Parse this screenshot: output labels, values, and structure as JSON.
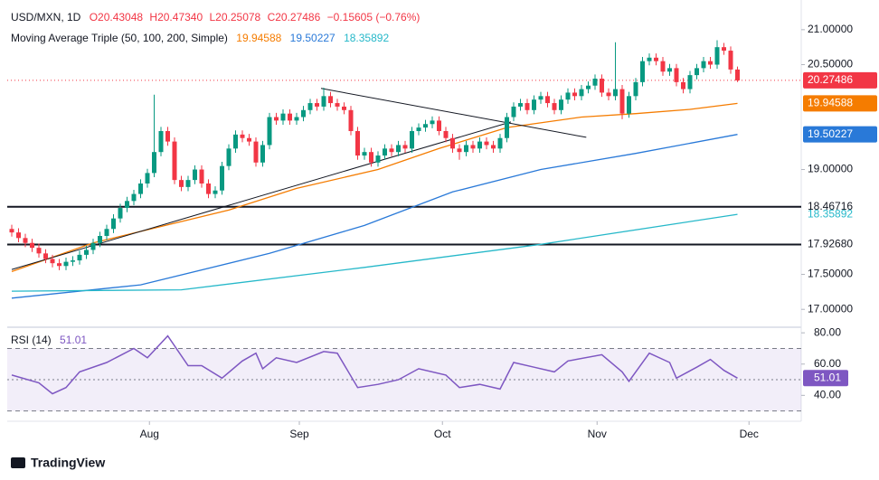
{
  "chart_data": {
    "type": "candlestick",
    "header": {
      "symbol": "USD/MXN, 1D",
      "open": "O20.43048",
      "high": "H20.47340",
      "low": "L20.25078",
      "close": "C20.27486",
      "change": "−0.15605 (−0.76%)"
    },
    "ma_title": "Moving Average Triple (50, 100, 200, Simple)",
    "footer": "TradingView",
    "xticks": [
      {
        "value": 20.3,
        "label": "Aug"
      },
      {
        "value": 42.4,
        "label": "Sep"
      },
      {
        "value": 63.5,
        "label": "Oct"
      },
      {
        "value": 86.3,
        "label": "Nov"
      },
      {
        "value": 108.7,
        "label": "Dec"
      }
    ],
    "ylim": [
      16.77,
      21.36
    ],
    "yticks": [
      {
        "value": 21,
        "label": "21.00000"
      },
      {
        "value": 20.5,
        "label": "20.50000"
      },
      {
        "value": 19,
        "label": "19.00000"
      },
      {
        "value": 17.5,
        "label": "17.50000"
      },
      {
        "value": 17,
        "label": "17.00000"
      }
    ],
    "up_color": "#089981",
    "down_color": "#f23645",
    "open": [
      18.15,
      18.1,
      18.02,
      17.95,
      17.88,
      17.8,
      17.72,
      17.66,
      17.62,
      17.68,
      17.7,
      17.78,
      17.85,
      17.95,
      18.05,
      18.15,
      18.3,
      18.45,
      18.55,
      18.65,
      18.8,
      18.95,
      19.25,
      19.55,
      19.4,
      18.85,
      18.75,
      18.85,
      19.0,
      18.8,
      18.65,
      18.7,
      19.05,
      19.3,
      19.5,
      19.45,
      19.4,
      19.1,
      19.35,
      19.75,
      19.7,
      19.8,
      19.7,
      19.75,
      19.85,
      19.95,
      19.9,
      20.05,
      19.95,
      19.9,
      19.85,
      19.55,
      19.2,
      19.25,
      19.1,
      19.2,
      19.3,
      19.25,
      19.35,
      19.3,
      19.55,
      19.6,
      19.65,
      19.7,
      19.55,
      19.45,
      19.3,
      19.25,
      19.35,
      19.3,
      19.4,
      19.35,
      19.3,
      19.45,
      19.75,
      19.9,
      19.95,
      19.85,
      20.0,
      20.05,
      19.95,
      19.85,
      20.0,
      20.1,
      20.05,
      20.15,
      20.2,
      20.3,
      20.1,
      20.05,
      20.15,
      19.8,
      20.05,
      20.25,
      20.55,
      20.6,
      20.55,
      20.4,
      20.45,
      20.25,
      20.15,
      20.35,
      20.45,
      20.55,
      20.5,
      20.75,
      20.7,
      20.43048
    ],
    "high": [
      18.21,
      18.16,
      18.08,
      18.01,
      17.94,
      17.86,
      17.78,
      17.72,
      17.74,
      17.76,
      17.84,
      17.91,
      18.01,
      18.11,
      18.21,
      18.36,
      18.51,
      18.61,
      18.71,
      18.86,
      19.01,
      20.07,
      19.61,
      19.61,
      19.46,
      18.91,
      18.91,
      19.06,
      19.06,
      18.86,
      18.76,
      19.11,
      19.36,
      19.56,
      19.56,
      19.51,
      19.46,
      19.41,
      19.81,
      19.81,
      19.86,
      19.86,
      19.81,
      19.91,
      20.01,
      20.01,
      20.17,
      20.11,
      20.01,
      19.96,
      19.91,
      19.61,
      19.31,
      19.31,
      19.26,
      19.36,
      19.36,
      19.41,
      19.41,
      19.61,
      19.66,
      19.71,
      19.76,
      19.76,
      19.61,
      19.51,
      19.36,
      19.41,
      19.41,
      19.46,
      19.46,
      19.41,
      19.51,
      19.81,
      19.96,
      20.01,
      20.01,
      20.06,
      20.11,
      20.11,
      20.01,
      20.06,
      20.16,
      20.16,
      20.21,
      20.26,
      20.36,
      20.36,
      20.16,
      20.82,
      20.21,
      20.11,
      20.31,
      20.61,
      20.66,
      20.66,
      20.61,
      20.51,
      20.51,
      20.31,
      20.41,
      20.51,
      20.61,
      20.61,
      20.85,
      20.81,
      20.76,
      20.4734
    ],
    "low": [
      18.04,
      17.96,
      17.89,
      17.82,
      17.74,
      17.66,
      17.6,
      17.56,
      17.56,
      17.62,
      17.64,
      17.72,
      17.79,
      17.89,
      17.99,
      18.09,
      18.24,
      18.39,
      18.49,
      18.59,
      18.74,
      18.89,
      19.19,
      19.34,
      18.79,
      18.69,
      18.69,
      18.79,
      18.74,
      18.59,
      18.59,
      18.64,
      18.99,
      19.24,
      19.39,
      19.34,
      19.04,
      19.04,
      19.29,
      19.64,
      19.64,
      19.64,
      19.64,
      19.69,
      19.79,
      19.84,
      19.84,
      19.89,
      19.84,
      19.79,
      19.49,
      19.14,
      19.14,
      19.04,
      19.04,
      19.14,
      19.19,
      19.19,
      19.24,
      19.24,
      19.49,
      19.54,
      19.59,
      19.49,
      19.39,
      19.24,
      19.14,
      19.19,
      19.24,
      19.24,
      19.29,
      19.24,
      19.24,
      19.39,
      19.69,
      19.84,
      19.79,
      19.79,
      19.94,
      19.89,
      19.79,
      19.79,
      19.94,
      19.99,
      19.99,
      20.09,
      20.14,
      20.04,
      19.99,
      19.99,
      19.72,
      19.74,
      19.99,
      20.19,
      20.49,
      20.49,
      20.34,
      20.34,
      20.19,
      20.09,
      20.09,
      20.29,
      20.39,
      20.44,
      20.44,
      20.64,
      20.37,
      20.25078
    ],
    "close": [
      18.1,
      18.02,
      17.95,
      17.88,
      17.8,
      17.72,
      17.66,
      17.62,
      17.68,
      17.7,
      17.78,
      17.85,
      17.95,
      18.05,
      18.15,
      18.3,
      18.45,
      18.55,
      18.65,
      18.8,
      18.95,
      19.25,
      19.55,
      19.4,
      18.85,
      18.75,
      18.85,
      19.0,
      18.8,
      18.65,
      18.7,
      19.05,
      19.3,
      19.5,
      19.45,
      19.4,
      19.1,
      19.35,
      19.75,
      19.7,
      19.8,
      19.7,
      19.75,
      19.85,
      19.95,
      19.9,
      20.05,
      19.95,
      19.9,
      19.85,
      19.55,
      19.2,
      19.25,
      19.1,
      19.2,
      19.3,
      19.25,
      19.35,
      19.3,
      19.55,
      19.6,
      19.65,
      19.7,
      19.55,
      19.45,
      19.3,
      19.25,
      19.35,
      19.3,
      19.4,
      19.35,
      19.3,
      19.45,
      19.75,
      19.9,
      19.95,
      19.85,
      20.0,
      20.05,
      19.95,
      19.85,
      20.0,
      20.1,
      20.05,
      20.15,
      20.2,
      20.3,
      20.1,
      20.05,
      20.15,
      19.8,
      20.05,
      20.25,
      20.55,
      20.6,
      20.55,
      20.4,
      20.45,
      20.25,
      20.15,
      20.35,
      20.45,
      20.55,
      20.5,
      20.75,
      20.7,
      20.43048,
      20.27486
    ],
    "series": [
      {
        "color": "#f57c00",
        "x": [
          0,
          12,
          32,
          42,
          54,
          63,
          73,
          84,
          92,
          100,
          107
        ],
        "values": [
          17.54,
          17.95,
          18.42,
          18.73,
          19.0,
          19.3,
          19.6,
          19.75,
          19.8,
          19.86,
          19.94588
        ]
      },
      {
        "color": "#2979d8",
        "x": [
          0,
          19,
          38,
          52,
          65,
          78,
          92,
          107
        ],
        "values": [
          17.16,
          17.35,
          17.8,
          18.2,
          18.68,
          19.0,
          19.23,
          19.50227
        ]
      },
      {
        "color": "#26b8c9",
        "x": [
          0,
          25,
          52,
          78,
          107
        ],
        "values": [
          17.26,
          17.28,
          17.6,
          17.93,
          18.35892
        ]
      }
    ],
    "trend_lines": [
      {
        "x": [
          45.6,
          84.7
        ],
        "values": [
          20.16,
          19.46
        ]
      },
      {
        "x": [
          0,
          73.6
        ],
        "values": [
          17.57,
          19.68
        ]
      }
    ],
    "levels": [
      18.46716,
      {
        "value": 17.9268,
        "label": "17.92680"
      }
    ],
    "rsi": {
      "title": "RSI (14)",
      "color": "#7e57c2",
      "ylim": [
        24,
        83
      ],
      "yticks": [
        {
          "value": 80,
          "label": "80.00"
        },
        {
          "value": 60,
          "label": "60.00"
        },
        {
          "value": 40,
          "label": "40.00"
        }
      ],
      "bands": [
        70,
        30
      ],
      "midline": 50,
      "x": [
        0,
        4,
        6,
        8,
        10,
        14,
        18,
        20,
        23,
        26,
        28,
        31,
        34,
        36,
        37,
        39,
        42,
        46,
        48,
        51,
        54,
        57,
        60,
        64,
        66,
        69,
        72,
        74,
        77,
        80,
        82,
        87,
        90,
        91,
        94,
        97,
        98,
        101,
        103,
        105,
        107
      ],
      "values": [
        53,
        48,
        41,
        45,
        55,
        61,
        70,
        64,
        78,
        59,
        59,
        51,
        62,
        67,
        57,
        64,
        61,
        68,
        67,
        45,
        47,
        50,
        57,
        53,
        45,
        47,
        44,
        61,
        58,
        55,
        62,
        66,
        55,
        49,
        67,
        61,
        51,
        58,
        63,
        56,
        51.01
      ]
    }
  }
}
